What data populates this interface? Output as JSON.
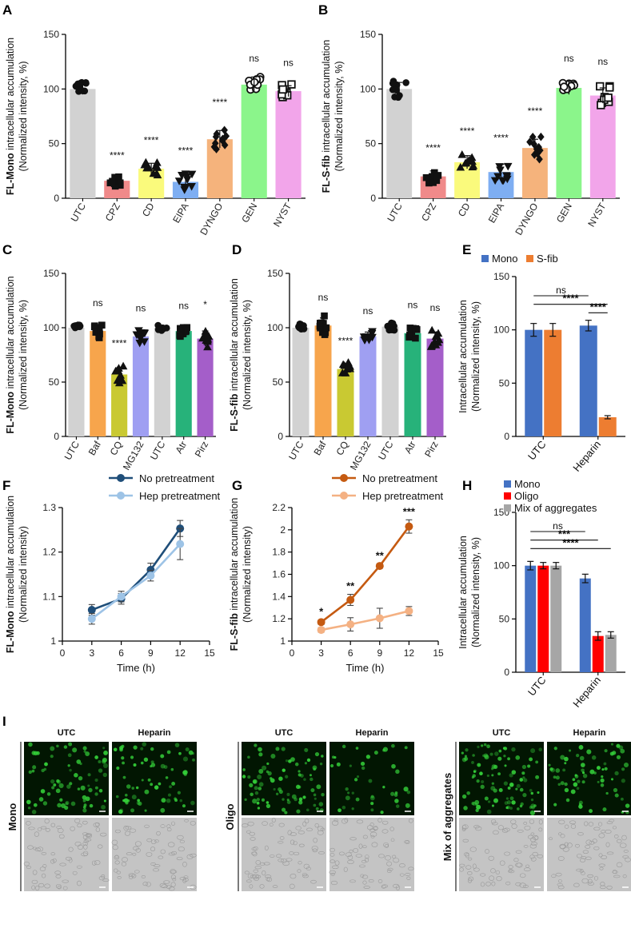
{
  "panel_letters": [
    "A",
    "B",
    "C",
    "D",
    "E",
    "F",
    "G",
    "H",
    "I"
  ],
  "colors": {
    "UTC": "#d2d2d2",
    "CPZ": "#f08a8a",
    "CD": "#fafa7c",
    "EIPA": "#7eaef2",
    "DYNGO": "#f5b37c",
    "GEN": "#8bf58b",
    "NYST": "#f2a5ea",
    "Baf": "#f7a54c",
    "CQ": "#c9c932",
    "MG132": "#9f9ff2",
    "Atr": "#27b27a",
    "Pirz": "#a45ec9",
    "mono": "#4472c4",
    "sfib": "#ed7d31",
    "oligo": "#ff0000",
    "mix": "#a6a6a6",
    "no_pre_F": "#1f4e79",
    "hep_pre_F": "#9dc3e6",
    "no_pre_G": "#c55a11",
    "hep_pre_G": "#f4b183",
    "fluor": "#0a7a10",
    "bright": "#c4c4c4"
  },
  "chart_data": [
    {
      "id": "A",
      "type": "bar",
      "categories": [
        "UTC",
        "CPZ",
        "CD",
        "EIPA",
        "DYNGO",
        "GEN",
        "NYST"
      ],
      "values": [
        100,
        16,
        27,
        15,
        54,
        104,
        98
      ],
      "errors": [
        5,
        4,
        5,
        6,
        8,
        7,
        5
      ],
      "markers": [
        "circle",
        "square",
        "triangle",
        "down",
        "diamond",
        "open-circle",
        "open-square"
      ],
      "sig": [
        "",
        "****",
        "****",
        "****",
        "****",
        "ns",
        "ns"
      ],
      "ylabel_bold": "FL-Mono",
      "ylabel_rest": " intracellular accumulation",
      "ylabel2": "(Normalized intensity, %)",
      "ylim": [
        0,
        150
      ],
      "yticks": [
        0,
        50,
        100,
        150
      ]
    },
    {
      "id": "B",
      "type": "bar",
      "categories": [
        "UTC",
        "CPZ",
        "CD",
        "EIPA",
        "DYNGO",
        "GEN",
        "NYST"
      ],
      "values": [
        100,
        20,
        33,
        24,
        46,
        101,
        94
      ],
      "errors": [
        6,
        5,
        6,
        7,
        8,
        6,
        7
      ],
      "markers": [
        "circle",
        "square",
        "triangle",
        "down",
        "diamond",
        "open-circle",
        "open-square"
      ],
      "sig": [
        "",
        "****",
        "****",
        "****",
        "****",
        "ns",
        "ns"
      ],
      "ylabel_bold": "FL-S-fib",
      "ylabel_rest": " intracellular accumulation",
      "ylabel2": "(Normalized intensity, %)",
      "ylim": [
        0,
        150
      ],
      "yticks": [
        0,
        50,
        100,
        150
      ]
    },
    {
      "id": "C",
      "type": "bar",
      "categories": [
        "UTC",
        "Baf",
        "CQ",
        "MG132",
        "UTC",
        "Atr",
        "Pirz"
      ],
      "values": [
        100,
        97,
        57,
        92,
        100,
        97,
        90
      ],
      "errors": [
        2,
        5,
        6,
        5,
        2,
        4,
        7
      ],
      "markers": [
        "circle",
        "square",
        "triangle",
        "down",
        "circle",
        "square",
        "triangle"
      ],
      "sig": [
        "",
        "ns",
        "****",
        "ns",
        "",
        "ns",
        "*"
      ],
      "ylabel_bold": "FL-Mono",
      "ylabel_rest": " intracellular accumulation",
      "ylabel2": "(Normalized intensity, %)",
      "ylim": [
        0,
        150
      ],
      "yticks": [
        0,
        50,
        100,
        150
      ]
    },
    {
      "id": "D",
      "type": "bar",
      "categories": [
        "UTC",
        "Baf",
        "CQ",
        "MG132",
        "UTC",
        "Atr",
        "Pirz"
      ],
      "values": [
        100,
        102,
        62,
        92,
        101,
        95,
        90
      ],
      "errors": [
        3,
        7,
        5,
        4,
        3,
        5,
        6
      ],
      "markers": [
        "circle",
        "square",
        "triangle",
        "down",
        "circle",
        "square",
        "triangle"
      ],
      "sig": [
        "",
        "ns",
        "****",
        "ns",
        "",
        "ns",
        "ns"
      ],
      "ylabel_bold": "FL-S-fib",
      "ylabel_rest": " intracellular accumulation",
      "ylabel2": "(Normalized intensity, %)",
      "ylim": [
        0,
        150
      ],
      "yticks": [
        0,
        50,
        100,
        150
      ]
    },
    {
      "id": "E",
      "type": "bar",
      "categories": [
        "UTC",
        "Heparin"
      ],
      "series": [
        {
          "name": "Mono",
          "values": [
            100,
            104
          ],
          "errors": [
            6,
            5
          ]
        },
        {
          "name": "S-fib",
          "values": [
            100,
            18
          ],
          "errors": [
            6,
            1.5
          ]
        }
      ],
      "sig_lines": [
        "ns",
        "****",
        "****"
      ],
      "ylabel": "Intracellular accumulation",
      "ylabel2": "(Normalized intensity, %)",
      "ylim": [
        0,
        150
      ],
      "yticks": [
        0,
        50,
        100,
        150
      ]
    },
    {
      "id": "F",
      "type": "line",
      "x": [
        3,
        6,
        9,
        12
      ],
      "series": [
        {
          "name": "No pretreatment",
          "values": [
            1.07,
            1.095,
            1.16,
            1.253
          ],
          "errors": [
            0.012,
            0.012,
            0.015,
            0.018
          ]
        },
        {
          "name": "Hep pretreatment",
          "values": [
            1.05,
            1.1,
            1.147,
            1.218
          ],
          "errors": [
            0.012,
            0.012,
            0.012,
            0.035
          ]
        }
      ],
      "ylabel_bold": "FL-Mono",
      "ylabel_rest": " intracellular accumulation",
      "ylabel2": "(Normalized intensity)",
      "xlabel": "Time (h)",
      "xlim": [
        0,
        15
      ],
      "xticks": [
        0,
        3,
        6,
        9,
        12,
        15
      ],
      "ylim": [
        1,
        1.3
      ],
      "yticks": [
        1,
        1.1,
        1.2,
        1.3
      ],
      "ytick_labels": [
        "1",
        "1.1",
        "1.2",
        "1.3"
      ]
    },
    {
      "id": "G",
      "type": "line",
      "x": [
        3,
        6,
        9,
        12
      ],
      "series": [
        {
          "name": "No pretreatment",
          "values": [
            1.17,
            1.37,
            1.675,
            2.03
          ],
          "errors": [
            0.02,
            0.05,
            0.02,
            0.06
          ]
        },
        {
          "name": "Hep pretreatment",
          "values": [
            1.1,
            1.15,
            1.205,
            1.27
          ],
          "errors": [
            0.02,
            0.06,
            0.09,
            0.04
          ]
        }
      ],
      "sig": [
        "*",
        "**",
        "**",
        "***"
      ],
      "ylabel_bold": "FL-S-fib",
      "ylabel_rest": " intracellular accumulation",
      "ylabel2": "(Normalized intensity)",
      "xlabel": "Time (h)",
      "xlim": [
        0,
        15
      ],
      "xticks": [
        0,
        3,
        6,
        9,
        12,
        15
      ],
      "ylim": [
        1,
        2.2
      ],
      "yticks": [
        1,
        1.2,
        1.4,
        1.6,
        1.8,
        2,
        2.2
      ],
      "ytick_labels": [
        "1",
        "1.2",
        "1.4",
        "1.6",
        "1.8",
        "2",
        "2.2"
      ]
    },
    {
      "id": "H",
      "type": "bar",
      "categories": [
        "UTC",
        "Heparin"
      ],
      "series": [
        {
          "name": "Mono",
          "values": [
            100,
            88
          ],
          "errors": [
            4,
            4
          ]
        },
        {
          "name": "Oligo",
          "values": [
            100,
            34
          ],
          "errors": [
            3,
            4
          ]
        },
        {
          "name": "Mix of aggregates",
          "values": [
            100,
            35
          ],
          "errors": [
            3,
            3
          ]
        }
      ],
      "sig_lines": [
        "ns",
        "***",
        "****"
      ],
      "ylabel": "Intracellular accumulation",
      "ylabel2": "(Normalized intensity, %)",
      "ylim": [
        0,
        150
      ],
      "yticks": [
        0,
        50,
        100,
        150
      ]
    }
  ],
  "micrographs": {
    "headers": [
      "UTC",
      "Heparin"
    ],
    "groups": [
      {
        "label": "Mono",
        "density": [
          0.55,
          0.5
        ]
      },
      {
        "label": "Oligo",
        "density": [
          0.6,
          0.3
        ]
      },
      {
        "label": "Mix of aggregates",
        "density": [
          0.7,
          0.5
        ]
      }
    ]
  }
}
